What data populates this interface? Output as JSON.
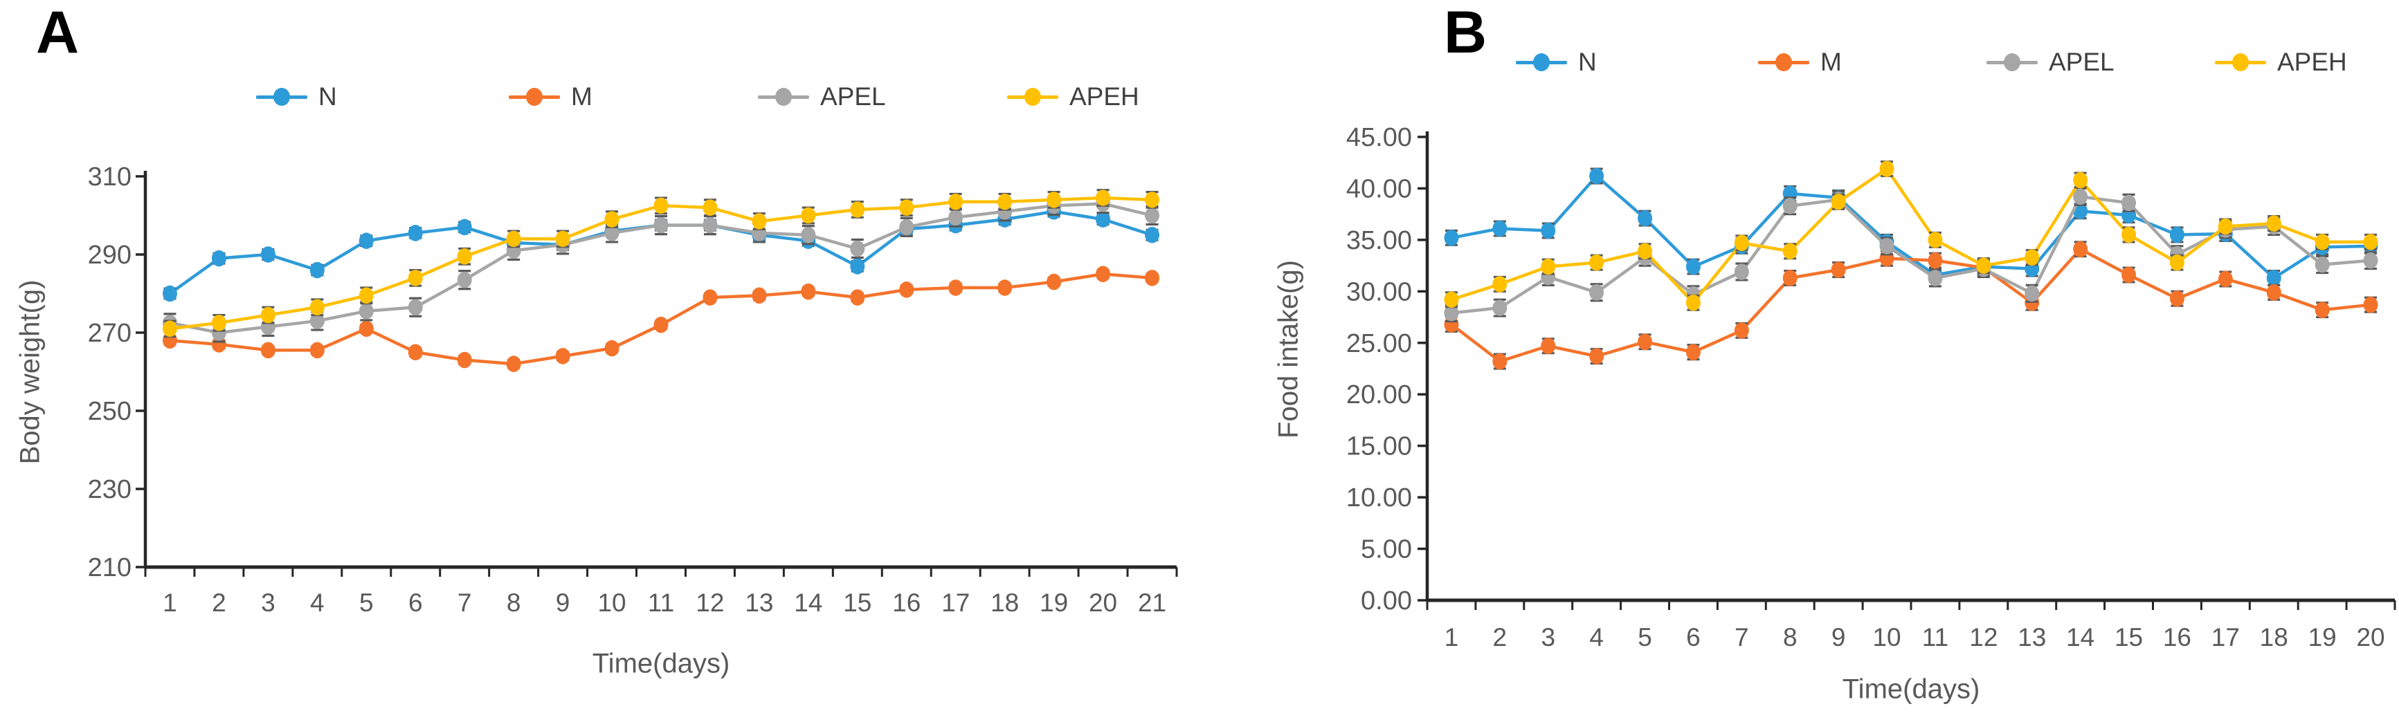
{
  "figure": {
    "background": "#ffffff",
    "axis_color": "#262626",
    "tick_label_color": "#595959",
    "error_bar_color": "#595959",
    "panels": [
      {
        "letter": "A",
        "y_axis_title": "Body weight(g)",
        "x_axis_title": "Time(days)"
      },
      {
        "letter": "B",
        "y_axis_title": "Food intake(g)",
        "x_axis_title": "Time(days)"
      }
    ]
  },
  "chart_data": [
    {
      "type": "line",
      "panel": "A",
      "title": "",
      "xlabel": "Time(days)",
      "ylabel": "Body weight(g)",
      "grid": false,
      "legend_position": "top",
      "error_bars": true,
      "ylim": [
        210,
        310
      ],
      "y_ticks": [
        {
          "label": "310",
          "value": 310
        },
        {
          "label": "290",
          "value": 290
        },
        {
          "label": "270",
          "value": 270
        },
        {
          "label": "250",
          "value": 250
        },
        {
          "label": "230",
          "value": 230
        },
        {
          "label": "210",
          "value": 210
        }
      ],
      "categories": [
        "1",
        "2",
        "3",
        "4",
        "5",
        "6",
        "7",
        "8",
        "9",
        "10",
        "11",
        "12",
        "13",
        "14",
        "15",
        "16",
        "17",
        "18",
        "19",
        "20",
        "21"
      ],
      "series": [
        {
          "name": "N",
          "color": "#2E9BD9",
          "error": 1.3,
          "values": [
            280,
            289,
            290,
            286,
            293.5,
            295.5,
            297,
            293,
            292.5,
            296,
            297.5,
            297.5,
            295,
            293.5,
            287,
            296.5,
            297.5,
            299,
            301,
            299,
            295
          ]
        },
        {
          "name": "M",
          "color": "#F4732B",
          "error": 1.0,
          "values": [
            268,
            267,
            265.5,
            265.5,
            271,
            265,
            263,
            262,
            264,
            266,
            272,
            279,
            279.5,
            280.5,
            279,
            281,
            281.5,
            281.5,
            283,
            285,
            284
          ]
        },
        {
          "name": "APEL",
          "color": "#A6A6A6",
          "error": 2.3,
          "values": [
            272.5,
            270,
            271.5,
            273,
            275.5,
            276.5,
            283.5,
            291,
            292.5,
            295.5,
            297.5,
            297.5,
            295.5,
            295,
            291.5,
            297,
            299.5,
            301,
            302.5,
            303,
            300
          ]
        },
        {
          "name": "APEH",
          "color": "#FFC000",
          "error": 2.0,
          "values": [
            271,
            272.5,
            274.5,
            276.5,
            279.5,
            284,
            289.5,
            294,
            294,
            299,
            302.5,
            302,
            298.5,
            300,
            301.5,
            302,
            303.5,
            303.5,
            304,
            304.5,
            304
          ]
        }
      ]
    },
    {
      "type": "line",
      "panel": "B",
      "title": "",
      "xlabel": "Time(days)",
      "ylabel": "Food intake(g)",
      "grid": false,
      "legend_position": "top",
      "error_bars": true,
      "ylim": [
        0,
        45
      ],
      "y_ticks": [
        {
          "label": "45.00",
          "value": 45
        },
        {
          "label": "40.00",
          "value": 40
        },
        {
          "label": "35.00",
          "value": 35
        },
        {
          "label": "30.00",
          "value": 30
        },
        {
          "label": "25.00",
          "value": 25
        },
        {
          "label": "20.00",
          "value": 20
        },
        {
          "label": "15.00",
          "value": 15
        },
        {
          "label": "10.00",
          "value": 10
        },
        {
          "label": "5.00",
          "value": 5
        },
        {
          "label": "0.00",
          "value": 0
        }
      ],
      "categories": [
        "1",
        "2",
        "3",
        "4",
        "5",
        "6",
        "7",
        "8",
        "9",
        "10",
        "11",
        "12",
        "13",
        "14",
        "15",
        "16",
        "17",
        "18",
        "19",
        "20"
      ],
      "series": [
        {
          "name": "N",
          "color": "#2E9BD9",
          "error": 0.7,
          "values": [
            35.2,
            36.1,
            35.9,
            41.2,
            37.1,
            32.4,
            34.4,
            39.5,
            39.1,
            34.8,
            31.6,
            32.4,
            32.2,
            37.8,
            37.4,
            35.5,
            35.6,
            31.3,
            34.3,
            34.4
          ]
        },
        {
          "name": "M",
          "color": "#F4732B",
          "error": 0.7,
          "values": [
            26.8,
            23.2,
            24.7,
            23.7,
            25.1,
            24.1,
            26.2,
            31.3,
            32.1,
            33.2,
            33.0,
            32.3,
            28.9,
            34.1,
            31.6,
            29.3,
            31.2,
            29.9,
            28.2,
            28.7
          ]
        },
        {
          "name": "APEL",
          "color": "#A6A6A6",
          "error": 0.8,
          "values": [
            27.9,
            28.4,
            31.4,
            29.9,
            33.3,
            29.7,
            31.9,
            38.3,
            38.9,
            34.4,
            31.3,
            32.2,
            29.8,
            39.2,
            38.6,
            33.6,
            36.0,
            36.3,
            32.6,
            33.0
          ]
        },
        {
          "name": "APEH",
          "color": "#FFC000",
          "error": 0.7,
          "values": [
            29.2,
            30.7,
            32.4,
            32.8,
            33.9,
            28.9,
            34.7,
            33.9,
            38.7,
            41.9,
            35.0,
            32.5,
            33.3,
            40.8,
            35.5,
            32.8,
            36.3,
            36.6,
            34.8,
            34.8
          ]
        }
      ]
    }
  ]
}
